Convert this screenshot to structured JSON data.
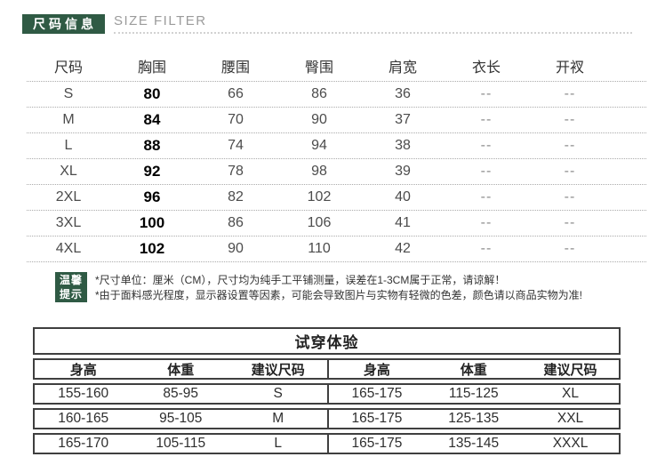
{
  "header": {
    "title_badge": "尺码信息",
    "subtitle": "SIZE FILTER"
  },
  "size_table": {
    "columns": [
      "尺码",
      "胸围",
      "腰围",
      "臀围",
      "肩宽",
      "衣长",
      "开衩"
    ],
    "rows": [
      [
        "S",
        "80",
        "66",
        "86",
        "36",
        "--",
        "--"
      ],
      [
        "M",
        "84",
        "70",
        "90",
        "37",
        "--",
        "--"
      ],
      [
        "L",
        "88",
        "74",
        "94",
        "38",
        "--",
        "--"
      ],
      [
        "XL",
        "92",
        "78",
        "98",
        "39",
        "--",
        "--"
      ],
      [
        "2XL",
        "96",
        "82",
        "102",
        "40",
        "--",
        "--"
      ],
      [
        "3XL",
        "100",
        "86",
        "106",
        "41",
        "--",
        "--"
      ],
      [
        "4XL",
        "102",
        "90",
        "110",
        "42",
        "--",
        "--"
      ]
    ]
  },
  "tips": {
    "badge_line1": "温馨",
    "badge_line2": "提示",
    "lines": [
      "*尺寸单位：厘米（CM），尺寸均为纯手工平铺测量，误差在1-3CM属于正常，请谅解！",
      "*由于面料感光程度，显示器设置等因素，可能会导致图片与实物有轻微的色差，颜色请以商品实物为准!"
    ]
  },
  "fit_table": {
    "title": "试穿体验",
    "columns": [
      "身高",
      "体重",
      "建议尺码",
      "身高",
      "体重",
      "建议尺码"
    ],
    "rows": [
      [
        "155-160",
        "85-95",
        "S",
        "165-175",
        "115-125",
        "XL"
      ],
      [
        "160-165",
        "95-105",
        "M",
        "165-175",
        "125-135",
        "XXL"
      ],
      [
        "165-170",
        "105-115",
        "L",
        "165-175",
        "135-145",
        "XXXL"
      ]
    ]
  },
  "colors": {
    "accent_green": "#2f5a44",
    "border_dark": "#3f3f3f",
    "dotted_line": "#ababab"
  }
}
